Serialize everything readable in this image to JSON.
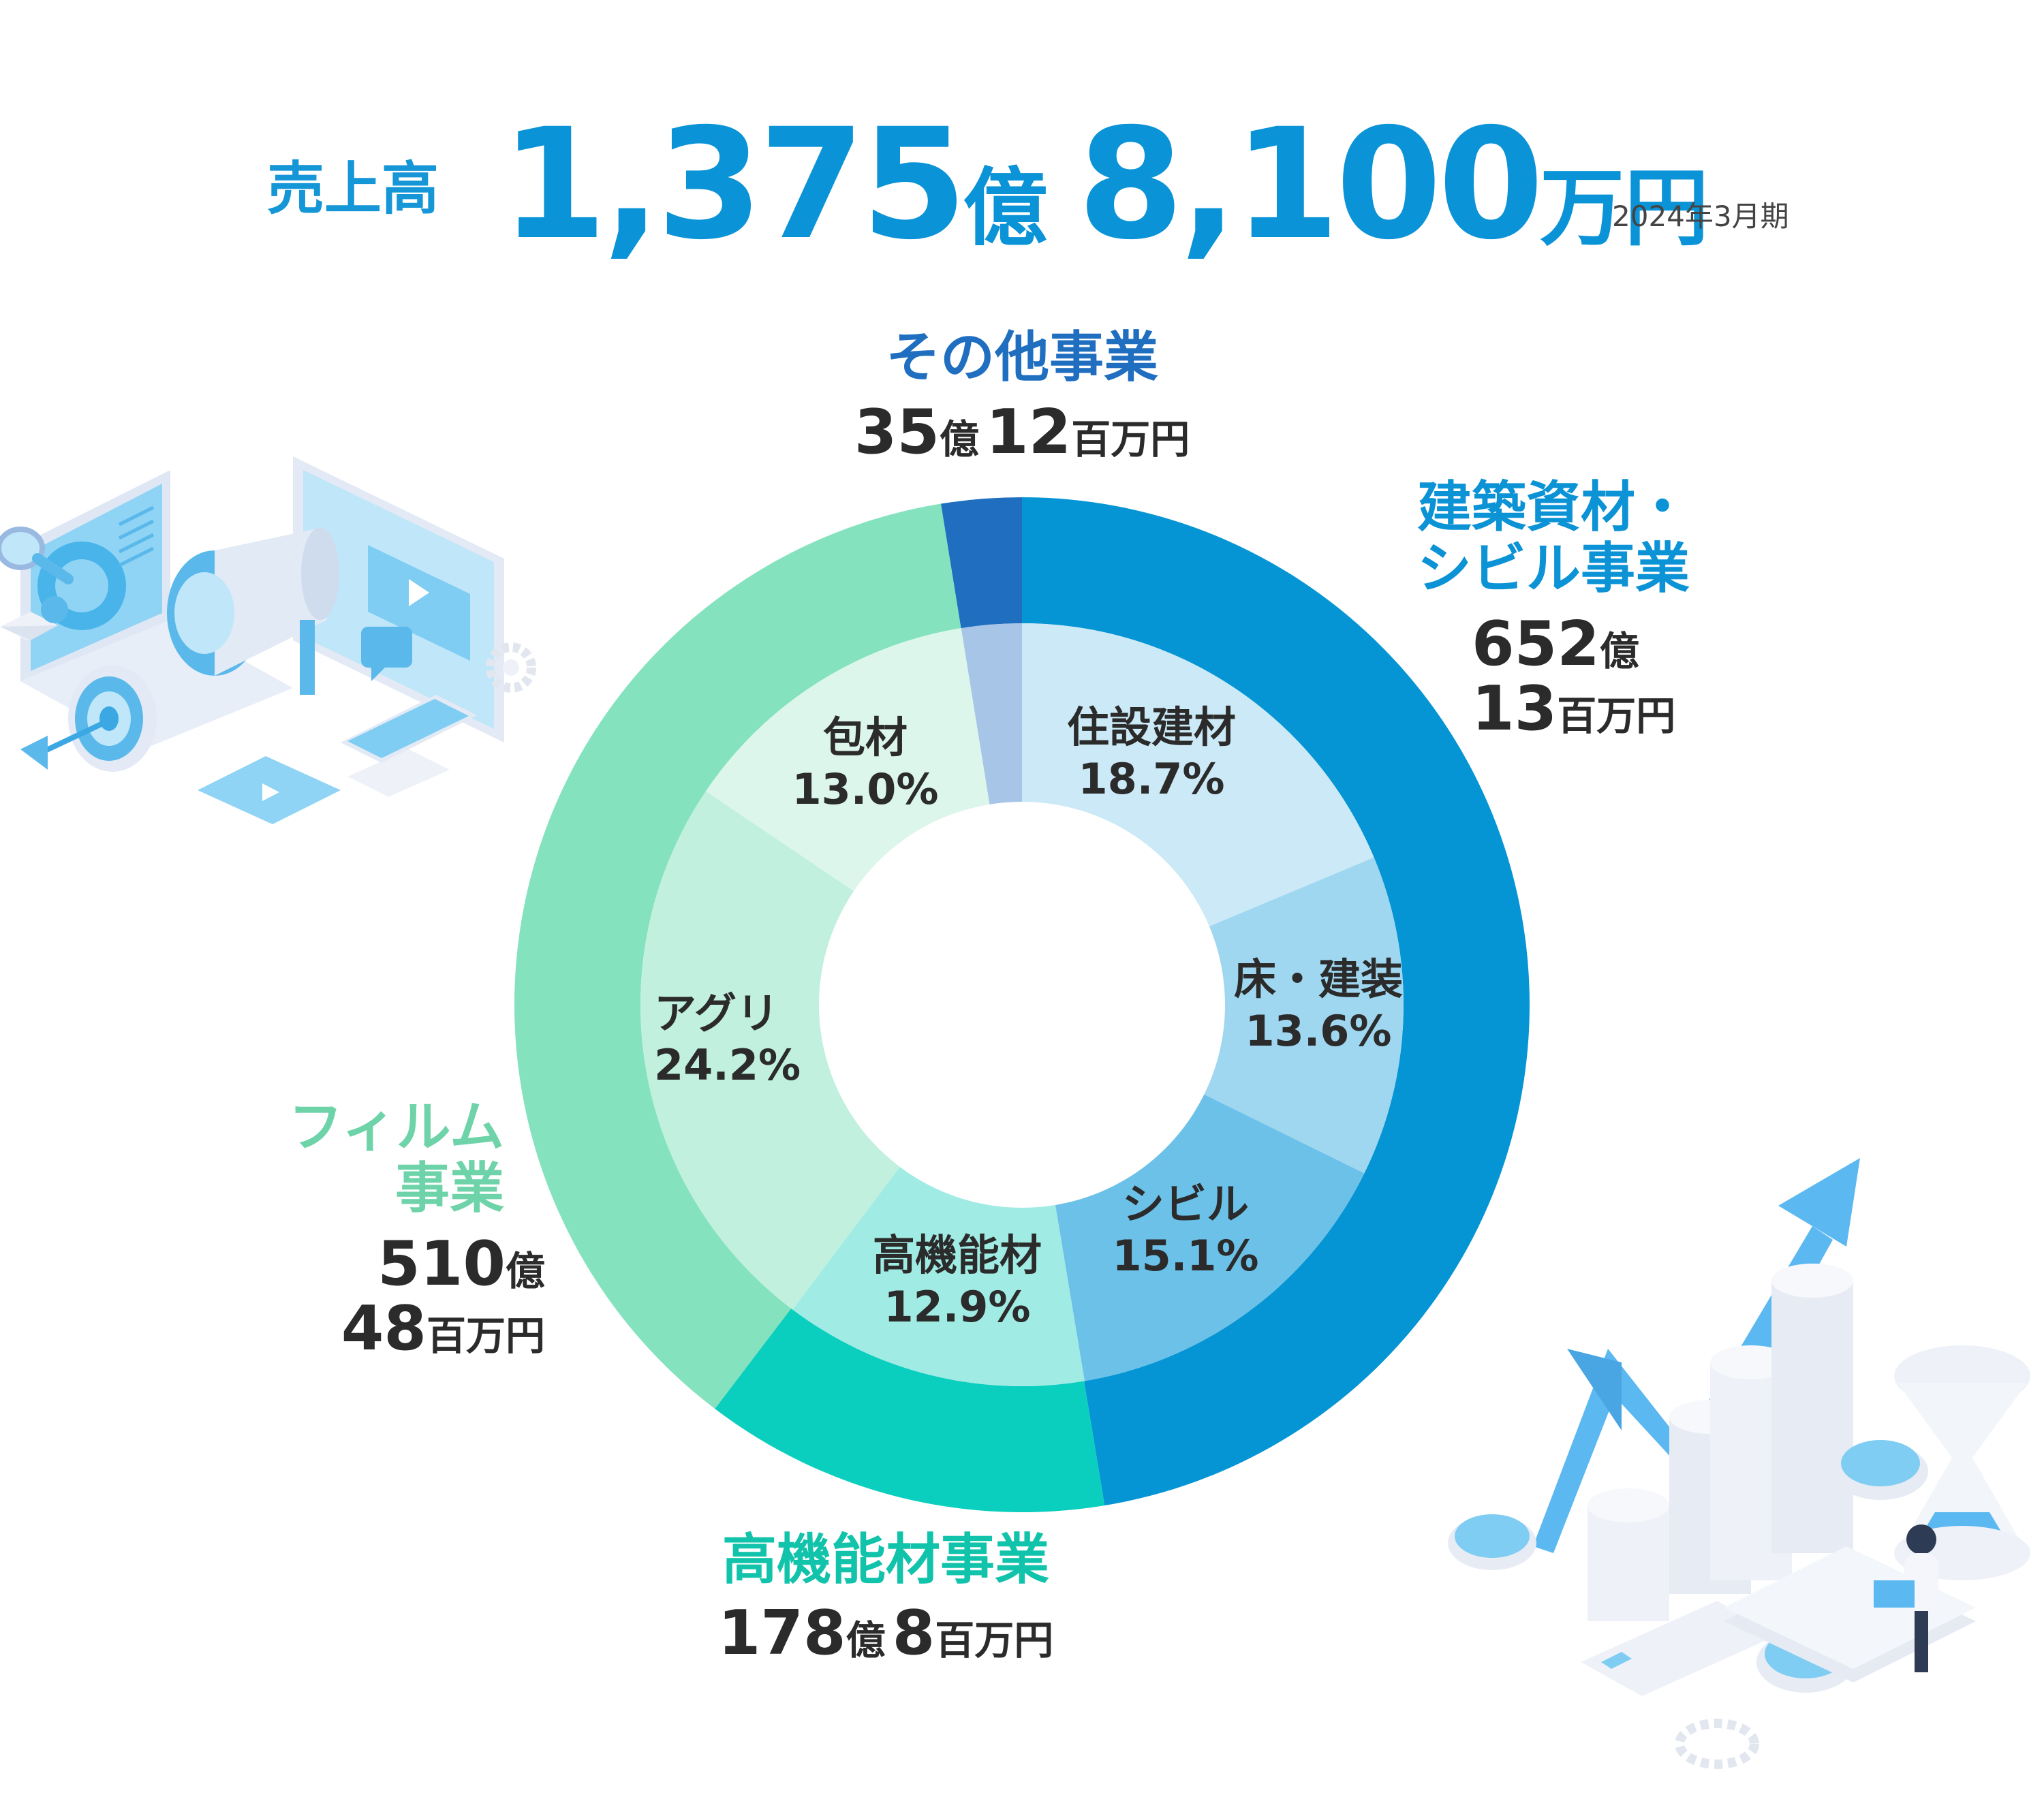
{
  "header": {
    "label": "売上高",
    "amount_a": "1,375",
    "unit_a": "億",
    "amount_b": "8,100",
    "unit_b": "万円",
    "period": "2024年3月期"
  },
  "segments": {
    "other": {
      "name": "その他事業",
      "value_num1": "35",
      "value_unit1": "億",
      "value_num2": "12",
      "value_unit2": "百万円",
      "color": "#1f6ec0"
    },
    "building": {
      "name_line1": "建築資材・",
      "name_line2": "シビル事業",
      "value_num1": "652",
      "value_unit1": "億",
      "value_num2": "13",
      "value_unit2": "百万円",
      "color": "#0595d4"
    },
    "highperf": {
      "name": "高機能材事業",
      "value_num1": "178",
      "value_unit1": "億",
      "value_num2": "8",
      "value_unit2": "百万円",
      "color": "#0bcfbe"
    },
    "film": {
      "name_line1": "フィルム",
      "name_line2": "事業",
      "value_num1": "510",
      "value_unit1": "億",
      "value_num2": "48",
      "value_unit2": "百万円",
      "color": "#85e2bf"
    }
  },
  "inner": {
    "housing": {
      "label": "住設建材",
      "pct": "18.7%"
    },
    "floor": {
      "label": "床・建装",
      "pct": "13.6%"
    },
    "civil": {
      "label": "シビル",
      "pct": "15.1%"
    },
    "highperf": {
      "label": "高機能材",
      "pct": "12.9%"
    },
    "agri": {
      "label": "アグリ",
      "pct": "24.2%"
    },
    "packaging": {
      "label": "包材",
      "pct": "13.0%"
    }
  },
  "chart_data": {
    "type": "pie",
    "title": "売上高 1,375億 8,100万円",
    "outer_series": [
      {
        "name": "建築資材・シビル事業",
        "value": 652.13,
        "unit": "億円",
        "color": "#0595d4"
      },
      {
        "name": "高機能材事業",
        "value": 178.08,
        "unit": "億円",
        "color": "#0bcfbe"
      },
      {
        "name": "フィルム事業",
        "value": 510.48,
        "unit": "億円",
        "color": "#85e2bf"
      },
      {
        "name": "その他事業",
        "value": 35.12,
        "unit": "億円",
        "color": "#1f6ec0"
      }
    ],
    "inner_series": [
      {
        "name": "住設建材",
        "value": 18.7,
        "color": "#cbe9f6"
      },
      {
        "name": "床・建装",
        "value": 13.6,
        "color": "#9fd7f0"
      },
      {
        "name": "シビル",
        "value": 15.1,
        "color": "#6cc1e8"
      },
      {
        "name": "高機能材",
        "value": 12.9,
        "color": "#a0ebe3"
      },
      {
        "name": "アグリ",
        "value": 24.2,
        "color": "#c1f0df"
      },
      {
        "name": "包材",
        "value": 13.0,
        "color": "#dcf6ec"
      },
      {
        "name": "その他",
        "value": 2.55,
        "color": "#a7c6e7"
      }
    ]
  }
}
